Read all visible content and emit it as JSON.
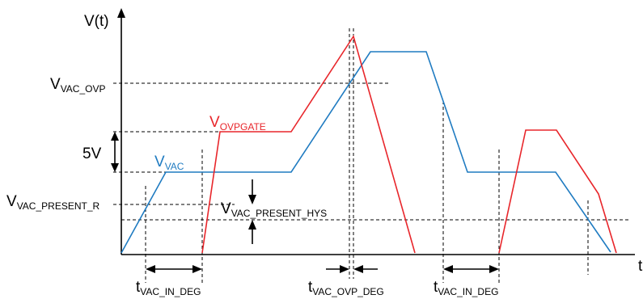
{
  "axis": {
    "y_label": "V(t)",
    "x_label": "t"
  },
  "labels": {
    "vac_ovp": {
      "main": "V",
      "sub": "VAC_OVP"
    },
    "vovpgate": {
      "main": "V",
      "sub": "OVPGATE",
      "color": "#e8262b"
    },
    "five_v": "5V",
    "vvac": {
      "main": "V",
      "sub": "VAC",
      "color": "#1f7bc1"
    },
    "vac_present_r": {
      "main": "V",
      "sub": "VAC_PRESENT_R"
    },
    "vac_present_hys": {
      "main": "V",
      "sub": "VAC_PRESENT_HYS"
    },
    "t_in_deg_1": {
      "main": "t",
      "sub": "VAC_IN_DEG"
    },
    "t_ovp_deg": {
      "main": "t",
      "sub": "VAC_OVP_DEG"
    },
    "t_in_deg_2": {
      "main": "t",
      "sub": "VAC_IN_DEG"
    }
  },
  "colors": {
    "vac": "#1f7bc1",
    "ovpgate": "#e8262b"
  }
}
